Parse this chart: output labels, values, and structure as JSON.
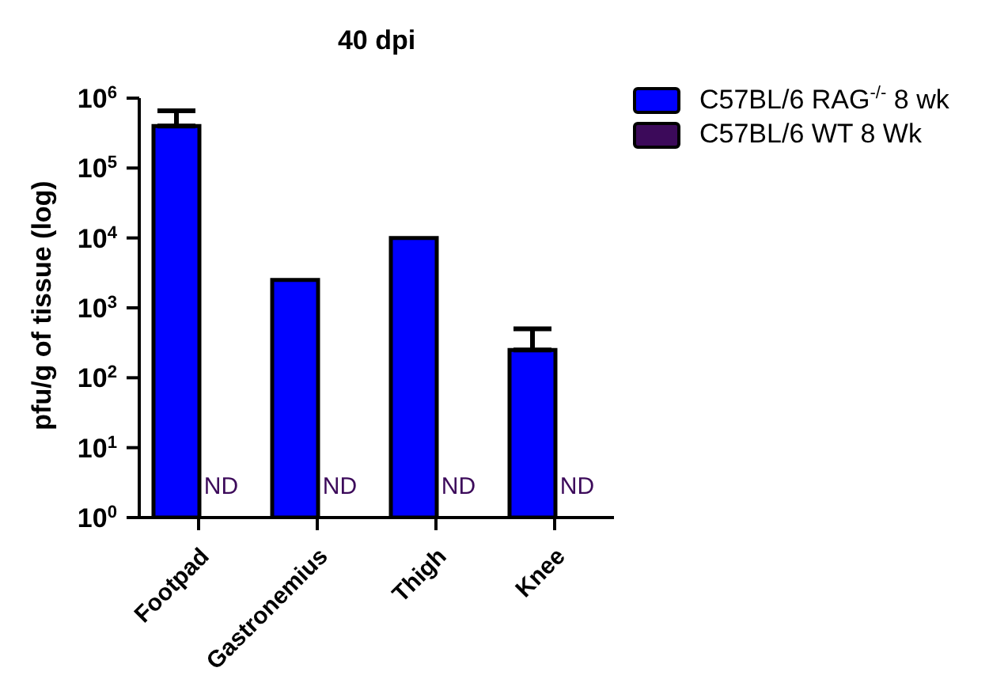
{
  "chart_data": {
    "type": "bar",
    "title": "40 dpi",
    "ylabel": "pfu/g of tissue (log)",
    "categories": [
      "Footpad",
      "Gastronemius",
      "Thigh",
      "Knee"
    ],
    "series": [
      {
        "name": "C57BL/6 RAG$^{-/-}$ 8 wk",
        "color": "#0000ff",
        "values": [
          400000,
          2500,
          10000,
          250
        ],
        "errors": [
          [
            400000,
            660000
          ],
          null,
          null,
          [
            250,
            500
          ]
        ]
      },
      {
        "name": "C57BL/6 WT 8 Wk",
        "color": "#3c0a5a",
        "values": [
          null,
          null,
          null,
          null
        ],
        "value_labels": [
          "ND",
          "ND",
          "ND",
          "ND"
        ]
      }
    ],
    "log": true,
    "ylim": [
      1,
      1000000
    ],
    "yticks": [
      {
        "value": 1,
        "label": "10$^{0}$"
      },
      {
        "value": 10,
        "label": "10$^{1}$"
      },
      {
        "value": 100,
        "label": "10$^{2}$"
      },
      {
        "value": 1000,
        "label": "10$^{3}$"
      },
      {
        "value": 10000,
        "label": "10$^{4}$"
      },
      {
        "value": 100000,
        "label": "10$^{5}$"
      },
      {
        "value": 1000000,
        "label": "10$^{6}$"
      }
    ],
    "legend": "top right",
    "grid": false
  }
}
